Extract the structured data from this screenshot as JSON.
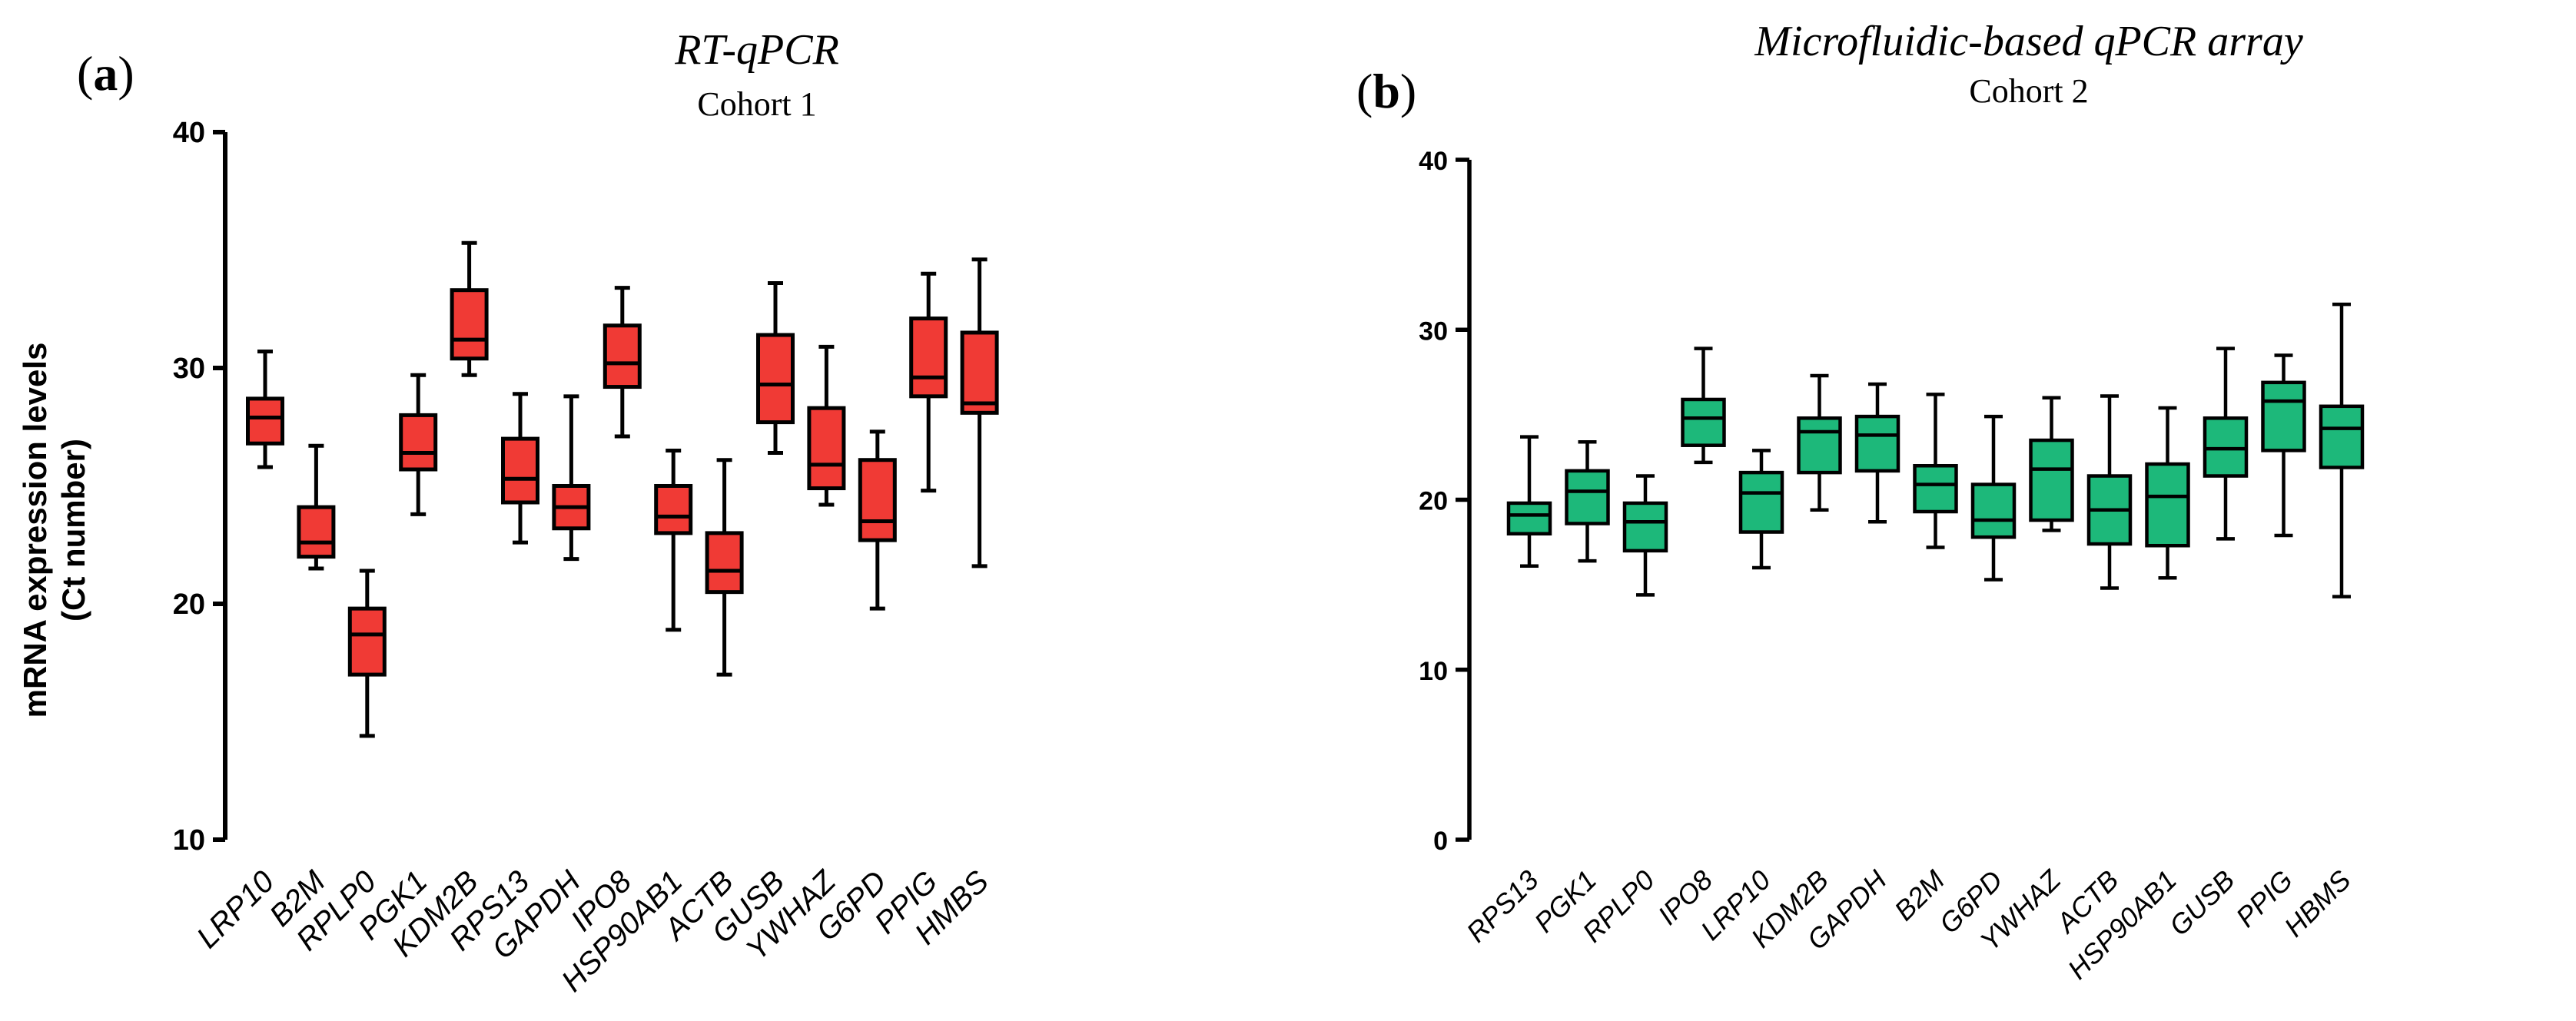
{
  "chart_data": [
    {
      "type": "box",
      "panel": "(a)",
      "panel_letter": "a",
      "title": "RT-qPCR",
      "subtitle": "Cohort 1",
      "ylabel_line1": "mRNA expression levels",
      "ylabel_line2": "(Ct number)",
      "ylim": [
        10,
        40
      ],
      "yticks": [
        10,
        20,
        30,
        40
      ],
      "color": "#f03a35",
      "categories": [
        "LRP10",
        "B2M",
        "RPLP0",
        "PGK1",
        "KDM2B",
        "RPS13",
        "GAPDH",
        "IPO8",
        "HSP90AB1",
        "ACTB",
        "GUSB",
        "YWHAZ",
        "G6PD",
        "PPIG",
        "HMBS"
      ],
      "boxes": [
        {
          "min": 25.8,
          "q1": 26.8,
          "median": 27.9,
          "q3": 28.7,
          "max": 30.7
        },
        {
          "min": 21.5,
          "q1": 22.0,
          "median": 22.6,
          "q3": 24.1,
          "max": 26.7
        },
        {
          "min": 14.4,
          "q1": 17.0,
          "median": 18.7,
          "q3": 19.8,
          "max": 21.4
        },
        {
          "min": 23.8,
          "q1": 25.7,
          "median": 26.4,
          "q3": 28.0,
          "max": 29.7
        },
        {
          "min": 29.7,
          "q1": 30.4,
          "median": 31.2,
          "q3": 33.3,
          "max": 35.3
        },
        {
          "min": 22.6,
          "q1": 24.3,
          "median": 25.3,
          "q3": 27.0,
          "max": 28.9
        },
        {
          "min": 21.9,
          "q1": 23.2,
          "median": 24.1,
          "q3": 25.0,
          "max": 28.8
        },
        {
          "min": 27.1,
          "q1": 29.2,
          "median": 30.2,
          "q3": 31.8,
          "max": 33.4
        },
        {
          "min": 18.9,
          "q1": 23.0,
          "median": 23.7,
          "q3": 25.0,
          "max": 26.5
        },
        {
          "min": 17.0,
          "q1": 20.5,
          "median": 21.4,
          "q3": 23.0,
          "max": 26.1
        },
        {
          "min": 26.4,
          "q1": 27.7,
          "median": 29.3,
          "q3": 31.4,
          "max": 33.6
        },
        {
          "min": 24.2,
          "q1": 24.9,
          "median": 25.9,
          "q3": 28.3,
          "max": 30.9
        },
        {
          "min": 19.8,
          "q1": 22.7,
          "median": 23.5,
          "q3": 26.1,
          "max": 27.3
        },
        {
          "min": 24.8,
          "q1": 28.8,
          "median": 29.6,
          "q3": 32.1,
          "max": 34.0
        },
        {
          "min": 21.6,
          "q1": 28.1,
          "median": 28.5,
          "q3": 31.5,
          "max": 34.6
        }
      ]
    },
    {
      "type": "box",
      "panel": "(b)",
      "panel_letter": "b",
      "title": "Microfluidic-based qPCR array",
      "subtitle": "Cohort 2",
      "ylim": [
        0,
        40
      ],
      "yticks": [
        0,
        10,
        20,
        30,
        40
      ],
      "color": "#1db87a",
      "categories": [
        "RPS13",
        "PGK1",
        "RPLP0",
        "IPO8",
        "LRP10",
        "KDM2B",
        "GAPDH",
        "B2M",
        "G6PD",
        "YWHAZ",
        "ACTB",
        "HSP90AB1",
        "GUSB",
        "PPIG",
        "HBMS"
      ],
      "boxes": [
        {
          "min": 16.1,
          "q1": 18.0,
          "median": 19.1,
          "q3": 19.8,
          "max": 23.7
        },
        {
          "min": 16.4,
          "q1": 18.6,
          "median": 20.5,
          "q3": 21.7,
          "max": 23.4
        },
        {
          "min": 14.4,
          "q1": 17.0,
          "median": 18.7,
          "q3": 19.8,
          "max": 21.4
        },
        {
          "min": 22.2,
          "q1": 23.2,
          "median": 24.8,
          "q3": 25.9,
          "max": 28.9
        },
        {
          "min": 16.0,
          "q1": 18.1,
          "median": 20.4,
          "q3": 21.6,
          "max": 22.9
        },
        {
          "min": 19.4,
          "q1": 21.6,
          "median": 24.0,
          "q3": 24.8,
          "max": 27.3
        },
        {
          "min": 18.7,
          "q1": 21.7,
          "median": 23.8,
          "q3": 24.9,
          "max": 26.8
        },
        {
          "min": 17.2,
          "q1": 19.3,
          "median": 20.9,
          "q3": 22.0,
          "max": 26.2
        },
        {
          "min": 15.3,
          "q1": 17.8,
          "median": 18.8,
          "q3": 20.9,
          "max": 24.9
        },
        {
          "min": 18.2,
          "q1": 18.8,
          "median": 21.8,
          "q3": 23.5,
          "max": 26.0
        },
        {
          "min": 14.8,
          "q1": 17.4,
          "median": 19.4,
          "q3": 21.4,
          "max": 26.1
        },
        {
          "min": 15.4,
          "q1": 17.3,
          "median": 20.2,
          "q3": 22.1,
          "max": 25.4
        },
        {
          "min": 17.7,
          "q1": 21.4,
          "median": 23.0,
          "q3": 24.8,
          "max": 28.9
        },
        {
          "min": 17.9,
          "q1": 22.9,
          "median": 25.8,
          "q3": 26.9,
          "max": 28.5
        },
        {
          "min": 14.3,
          "q1": 21.9,
          "median": 24.2,
          "q3": 25.5,
          "max": 31.5
        }
      ]
    }
  ]
}
